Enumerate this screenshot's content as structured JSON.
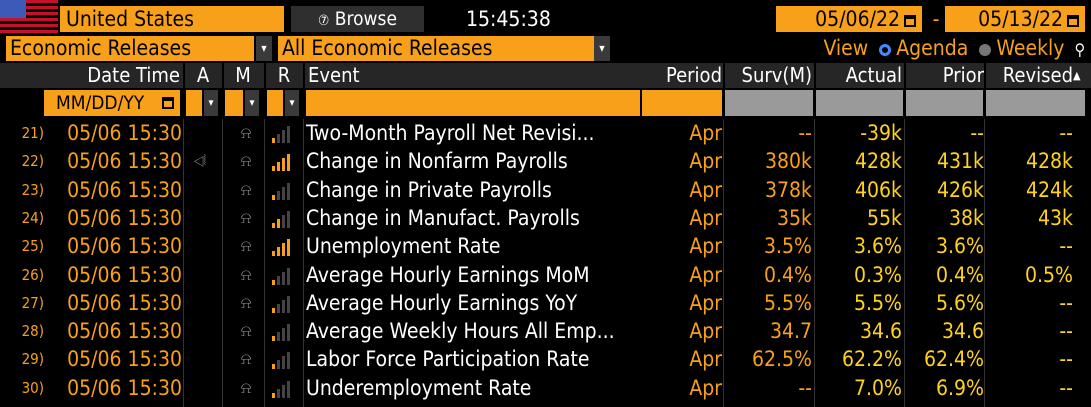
{
  "header": {
    "country": "United States",
    "browse_label": "Browse",
    "browse_icon": "⑦",
    "time": "15:45:38",
    "date_from": "05/06/22",
    "date_sep": "-",
    "date_to": "05/13/22"
  },
  "filters": {
    "category": "Economic Releases",
    "subcategory": "All Economic Releases",
    "view_label": "View",
    "agenda_label": "Agenda",
    "weekly_label": "Weekly",
    "selected_view": "Agenda"
  },
  "columns": {
    "date_time": "Date Time",
    "a": "A",
    "m": "M",
    "r": "R",
    "event": "Event",
    "period": "Period",
    "surv": "Surv(M)",
    "actual": "Actual",
    "prior": "Prior",
    "revised": "Revised",
    "date_filter_placeholder": "MM/DD/YY"
  },
  "colors": {
    "accent": "#f9a01b",
    "value_yellow": "#ffd21f",
    "background": "#000000"
  },
  "rows": [
    {
      "num": "21)",
      "date": "05/06 15:30",
      "audio": false,
      "rel": 1,
      "event": "Two-Month Payroll Net Revisi...",
      "period": "Apr",
      "surv": "--",
      "actual": "-39k",
      "prior": "--",
      "revised": "--"
    },
    {
      "num": "22)",
      "date": "05/06 15:30",
      "audio": true,
      "rel": 4,
      "event": "Change in Nonfarm Payrolls",
      "period": "Apr",
      "surv": "380k",
      "actual": "428k",
      "prior": "431k",
      "revised": "428k"
    },
    {
      "num": "23)",
      "date": "05/06 15:30",
      "audio": false,
      "rel": 1,
      "event": "Change in Private Payrolls",
      "period": "Apr",
      "surv": "378k",
      "actual": "406k",
      "prior": "426k",
      "revised": "424k"
    },
    {
      "num": "24)",
      "date": "05/06 15:30",
      "audio": false,
      "rel": 2,
      "event": "Change in Manufact. Payrolls",
      "period": "Apr",
      "surv": "35k",
      "actual": "55k",
      "prior": "38k",
      "revised": "43k"
    },
    {
      "num": "25)",
      "date": "05/06 15:30",
      "audio": false,
      "rel": 4,
      "event": "Unemployment Rate",
      "period": "Apr",
      "surv": "3.5%",
      "actual": "3.6%",
      "prior": "3.6%",
      "revised": "--"
    },
    {
      "num": "26)",
      "date": "05/06 15:30",
      "audio": false,
      "rel": 1,
      "event": "Average Hourly Earnings MoM",
      "period": "Apr",
      "surv": "0.4%",
      "actual": "0.3%",
      "prior": "0.4%",
      "revised": "0.5%"
    },
    {
      "num": "27)",
      "date": "05/06 15:30",
      "audio": false,
      "rel": 1,
      "event": "Average Hourly Earnings YoY",
      "period": "Apr",
      "surv": "5.5%",
      "actual": "5.5%",
      "prior": "5.6%",
      "revised": "--"
    },
    {
      "num": "28)",
      "date": "05/06 15:30",
      "audio": false,
      "rel": 1,
      "event": "Average Weekly Hours All Emp...",
      "period": "Apr",
      "surv": "34.7",
      "actual": "34.6",
      "prior": "34.6",
      "revised": "--"
    },
    {
      "num": "29)",
      "date": "05/06 15:30",
      "audio": false,
      "rel": 1,
      "event": "Labor Force Participation Rate",
      "period": "Apr",
      "surv": "62.5%",
      "actual": "62.2%",
      "prior": "62.4%",
      "revised": "--"
    },
    {
      "num": "30)",
      "date": "05/06 15:30",
      "audio": false,
      "rel": 1,
      "event": "Underemployment Rate",
      "period": "Apr",
      "surv": "--",
      "actual": "7.0%",
      "prior": "6.9%",
      "revised": "--"
    }
  ]
}
